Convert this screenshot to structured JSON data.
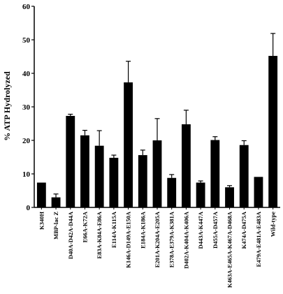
{
  "chart_data": {
    "type": "bar",
    "title": "",
    "xlabel": "",
    "ylabel": "% ATP Hydrolyzed",
    "ylim": [
      0,
      60
    ],
    "yticks": [
      0,
      10,
      20,
      30,
      40,
      50,
      60
    ],
    "grid": false,
    "legend": "none",
    "bar_color": "#000000",
    "categories": [
      "K340H",
      "MBP-lac Z",
      "D40A-D42A-D44A",
      "E66A-K72A",
      "E83A-K84A-E86A",
      "E114A-K115A",
      "K146A-D149A-E150A",
      "E184A-K186A",
      "E201A-K204A-E205A",
      "E378A-E379A-K381A",
      "D402A-K404A-K406A",
      "D443A-K447A",
      "D455A-D457A",
      "K463A-E465A-K467A-D468A",
      "K474A-D475A",
      "E479A-E481A-E483A",
      "Wild-type"
    ],
    "values": [
      7.4,
      3.0,
      27.3,
      21.5,
      18.4,
      14.8,
      37.3,
      15.6,
      20.0,
      8.8,
      24.8,
      7.4,
      20.1,
      6.0,
      18.6,
      9.1,
      45.2
    ],
    "errors": [
      0,
      1.0,
      0.5,
      1.5,
      4.5,
      0.8,
      6.3,
      1.5,
      6.5,
      1.0,
      4.2,
      0.5,
      1.0,
      0.5,
      1.3,
      0,
      6.7
    ]
  }
}
